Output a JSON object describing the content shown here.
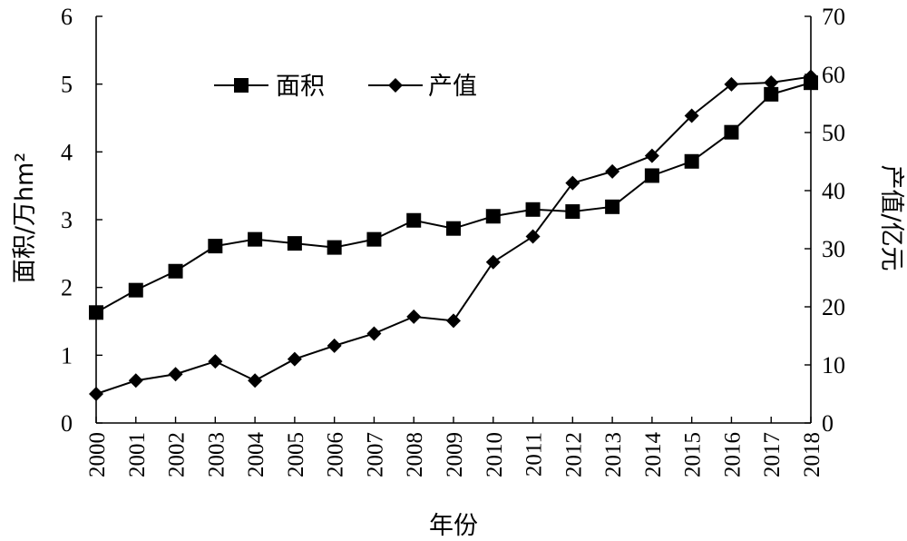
{
  "chart_data": {
    "type": "line",
    "x": [
      "2000",
      "2001",
      "2002",
      "2003",
      "2004",
      "2005",
      "2006",
      "2007",
      "2008",
      "2009",
      "2010",
      "2011",
      "2012",
      "2013",
      "2014",
      "2015",
      "2016",
      "2017",
      "2018"
    ],
    "series": [
      {
        "name": "面积",
        "axis": "left",
        "marker": "square",
        "values": [
          1.63,
          1.96,
          2.24,
          2.61,
          2.71,
          2.65,
          2.59,
          2.71,
          2.99,
          2.87,
          3.05,
          3.15,
          3.12,
          3.19,
          3.65,
          3.86,
          4.29,
          4.85,
          5.02
        ]
      },
      {
        "name": "产值",
        "axis": "right",
        "marker": "diamond",
        "values": [
          5.0,
          7.3,
          8.4,
          10.6,
          7.3,
          11.0,
          13.3,
          15.4,
          18.3,
          17.6,
          27.7,
          32.1,
          41.3,
          43.3,
          46.0,
          52.9,
          58.3,
          58.6,
          59.6
        ]
      }
    ],
    "xlabel": "年份",
    "ylabel_left": "面积/万hm²",
    "ylabel_right": "产值/亿元",
    "ylim_left": [
      0,
      6
    ],
    "yticks_left": [
      "0",
      "1",
      "2",
      "3",
      "4",
      "5",
      "6"
    ],
    "ylim_right": [
      0,
      70
    ],
    "yticks_right": [
      "0",
      "10",
      "20",
      "30",
      "40",
      "50",
      "60",
      "70"
    ],
    "grid": false,
    "legend_position": "top-left"
  }
}
